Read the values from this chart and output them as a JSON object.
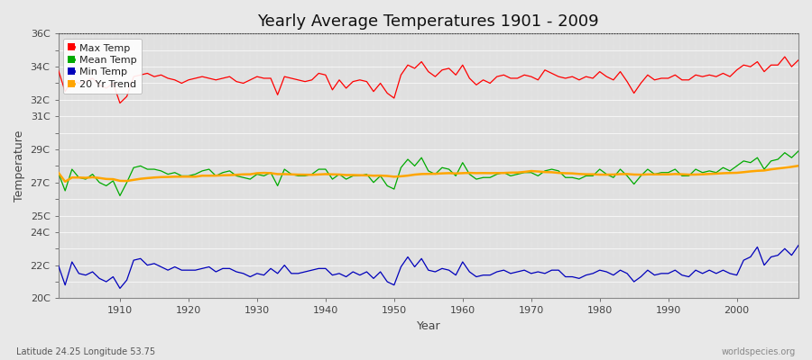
{
  "title": "Yearly Average Temperatures 1901 - 2009",
  "xlabel": "Year",
  "ylabel": "Temperature",
  "lat_lon_label": "Latitude 24.25 Longitude 53.75",
  "watermark": "worldspecies.org",
  "years": [
    1901,
    1902,
    1903,
    1904,
    1905,
    1906,
    1907,
    1908,
    1909,
    1910,
    1911,
    1912,
    1913,
    1914,
    1915,
    1916,
    1917,
    1918,
    1919,
    1920,
    1921,
    1922,
    1923,
    1924,
    1925,
    1926,
    1927,
    1928,
    1929,
    1930,
    1931,
    1932,
    1933,
    1934,
    1935,
    1936,
    1937,
    1938,
    1939,
    1940,
    1941,
    1942,
    1943,
    1944,
    1945,
    1946,
    1947,
    1948,
    1949,
    1950,
    1951,
    1952,
    1953,
    1954,
    1955,
    1956,
    1957,
    1958,
    1959,
    1960,
    1961,
    1962,
    1963,
    1964,
    1965,
    1966,
    1967,
    1968,
    1969,
    1970,
    1971,
    1972,
    1973,
    1974,
    1975,
    1976,
    1977,
    1978,
    1979,
    1980,
    1981,
    1982,
    1983,
    1984,
    1985,
    1986,
    1987,
    1988,
    1989,
    1990,
    1991,
    1992,
    1993,
    1994,
    1995,
    1996,
    1997,
    1998,
    1999,
    2000,
    2001,
    2002,
    2003,
    2004,
    2005,
    2006,
    2007,
    2008,
    2009
  ],
  "max_temp": [
    33.8,
    32.5,
    33.2,
    33.0,
    33.1,
    33.3,
    32.9,
    32.7,
    33.0,
    31.8,
    32.2,
    33.4,
    33.5,
    33.6,
    33.4,
    33.5,
    33.3,
    33.2,
    33.0,
    33.2,
    33.3,
    33.4,
    33.3,
    33.2,
    33.3,
    33.4,
    33.1,
    33.0,
    33.2,
    33.4,
    33.3,
    33.3,
    32.3,
    33.4,
    33.3,
    33.2,
    33.1,
    33.2,
    33.6,
    33.5,
    32.6,
    33.2,
    32.7,
    33.1,
    33.2,
    33.1,
    32.5,
    33.0,
    32.4,
    32.1,
    33.5,
    34.1,
    33.9,
    34.3,
    33.7,
    33.4,
    33.8,
    33.9,
    33.5,
    34.1,
    33.3,
    32.9,
    33.2,
    33.0,
    33.4,
    33.5,
    33.3,
    33.3,
    33.5,
    33.4,
    33.2,
    33.8,
    33.6,
    33.4,
    33.3,
    33.4,
    33.2,
    33.4,
    33.3,
    33.7,
    33.4,
    33.2,
    33.7,
    33.1,
    32.4,
    33.0,
    33.5,
    33.2,
    33.3,
    33.3,
    33.5,
    33.2,
    33.2,
    33.5,
    33.4,
    33.5,
    33.4,
    33.6,
    33.4,
    33.8,
    34.1,
    34.0,
    34.3,
    33.7,
    34.1,
    34.1,
    34.6,
    34.0,
    34.4
  ],
  "mean_temp": [
    27.6,
    26.5,
    27.8,
    27.3,
    27.2,
    27.5,
    27.0,
    26.8,
    27.1,
    26.2,
    27.0,
    27.9,
    28.0,
    27.8,
    27.8,
    27.7,
    27.5,
    27.6,
    27.4,
    27.4,
    27.5,
    27.7,
    27.8,
    27.4,
    27.6,
    27.7,
    27.4,
    27.3,
    27.2,
    27.5,
    27.4,
    27.6,
    26.8,
    27.8,
    27.5,
    27.4,
    27.4,
    27.5,
    27.8,
    27.8,
    27.2,
    27.5,
    27.2,
    27.4,
    27.4,
    27.5,
    27.0,
    27.4,
    26.8,
    26.6,
    27.9,
    28.4,
    28.0,
    28.5,
    27.7,
    27.5,
    27.9,
    27.8,
    27.4,
    28.2,
    27.5,
    27.2,
    27.3,
    27.3,
    27.5,
    27.6,
    27.4,
    27.5,
    27.6,
    27.6,
    27.4,
    27.7,
    27.8,
    27.7,
    27.3,
    27.3,
    27.2,
    27.4,
    27.4,
    27.8,
    27.5,
    27.3,
    27.8,
    27.4,
    26.9,
    27.4,
    27.8,
    27.5,
    27.6,
    27.6,
    27.8,
    27.4,
    27.4,
    27.8,
    27.6,
    27.7,
    27.6,
    27.9,
    27.7,
    28.0,
    28.3,
    28.2,
    28.5,
    27.8,
    28.3,
    28.4,
    28.8,
    28.5,
    28.9
  ],
  "min_temp": [
    22.0,
    20.8,
    22.2,
    21.5,
    21.4,
    21.6,
    21.2,
    21.0,
    21.3,
    20.6,
    21.1,
    22.3,
    22.4,
    22.0,
    22.1,
    21.9,
    21.7,
    21.9,
    21.7,
    21.7,
    21.7,
    21.8,
    21.9,
    21.6,
    21.8,
    21.8,
    21.6,
    21.5,
    21.3,
    21.5,
    21.4,
    21.8,
    21.5,
    22.0,
    21.5,
    21.5,
    21.6,
    21.7,
    21.8,
    21.8,
    21.4,
    21.5,
    21.3,
    21.6,
    21.4,
    21.6,
    21.2,
    21.6,
    21.0,
    20.8,
    21.9,
    22.5,
    21.9,
    22.4,
    21.7,
    21.6,
    21.8,
    21.7,
    21.4,
    22.2,
    21.6,
    21.3,
    21.4,
    21.4,
    21.6,
    21.7,
    21.5,
    21.6,
    21.7,
    21.5,
    21.6,
    21.5,
    21.7,
    21.7,
    21.3,
    21.3,
    21.2,
    21.4,
    21.5,
    21.7,
    21.6,
    21.4,
    21.7,
    21.5,
    21.0,
    21.3,
    21.7,
    21.4,
    21.5,
    21.5,
    21.7,
    21.4,
    21.3,
    21.7,
    21.5,
    21.7,
    21.5,
    21.7,
    21.5,
    21.4,
    22.3,
    22.5,
    23.1,
    22.0,
    22.5,
    22.6,
    23.0,
    22.6,
    23.2
  ],
  "ylim": [
    20.0,
    36.0
  ],
  "yticks": [
    20,
    21,
    22,
    23,
    24,
    25,
    26,
    27,
    28,
    29,
    30,
    31,
    32,
    33,
    34,
    35,
    36
  ],
  "ytick_labels_map": {
    "20": "20C",
    "22": "22C",
    "24": "24C",
    "25": "25C",
    "27": "27C",
    "29": "29C",
    "31": "31C",
    "32": "32C",
    "34": "34C",
    "36": "36C"
  },
  "xlim_start": 1901,
  "xlim_end": 2009,
  "xticks": [
    1910,
    1920,
    1930,
    1940,
    1950,
    1960,
    1970,
    1980,
    1990,
    2000
  ],
  "max_color": "#ff0000",
  "mean_color": "#00aa00",
  "min_color": "#0000bb",
  "trend_color": "#ffa500",
  "bg_color": "#e8e8e8",
  "plot_bg_color": "#e0e0e0",
  "grid_color": "#cccccc",
  "dotted_line_y": 36.0
}
